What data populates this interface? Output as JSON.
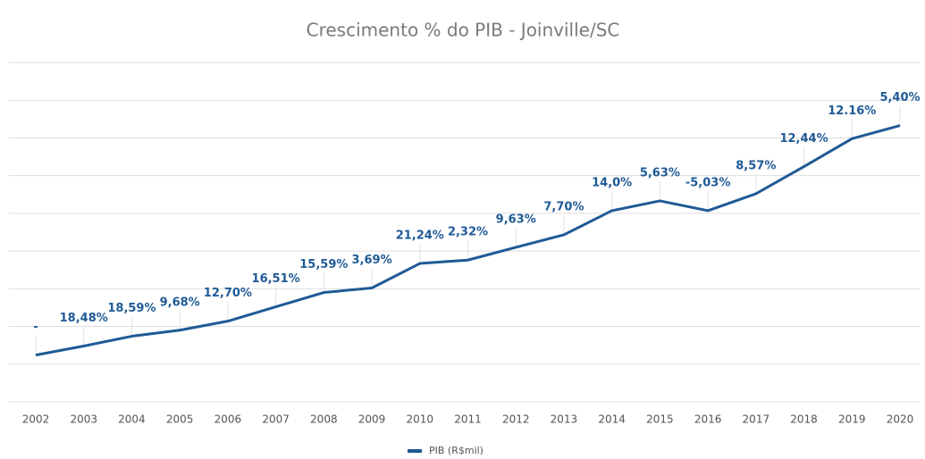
{
  "chart_data": {
    "type": "line",
    "title": "Crescimento % do PIB - Joinville/SC",
    "categories": [
      "2002",
      "2003",
      "2004",
      "2005",
      "2006",
      "2007",
      "2008",
      "2009",
      "2010",
      "2011",
      "2012",
      "2013",
      "2014",
      "2015",
      "2016",
      "2017",
      "2018",
      "2019",
      "2020"
    ],
    "series": [
      {
        "name": "PIB (R$mil)",
        "color": "#1f5a96",
        "values": [
          1.24,
          1.48,
          1.74,
          1.9,
          2.14,
          2.52,
          2.9,
          3.02,
          3.67,
          3.76,
          4.1,
          4.43,
          5.07,
          5.33,
          5.07,
          5.52,
          6.24,
          6.98,
          7.33
        ],
        "labels": [
          "-",
          "18,48%",
          "18,59%",
          "9,68%",
          "12,70%",
          "16,51%",
          "15,59%",
          "3,69%",
          "21,24%",
          "2,32%",
          "9,63%",
          "7,70%",
          "14,0%",
          "5,63%",
          "-5,03%",
          "8,57%",
          "12,44%",
          "12.16%",
          "5,40%"
        ]
      }
    ],
    "ylim": [
      0,
      9
    ],
    "yticks": [
      0,
      1,
      2,
      3,
      4,
      5,
      6,
      7,
      8,
      9
    ],
    "grid": true,
    "tick_labels": false,
    "legend": "bottom"
  }
}
